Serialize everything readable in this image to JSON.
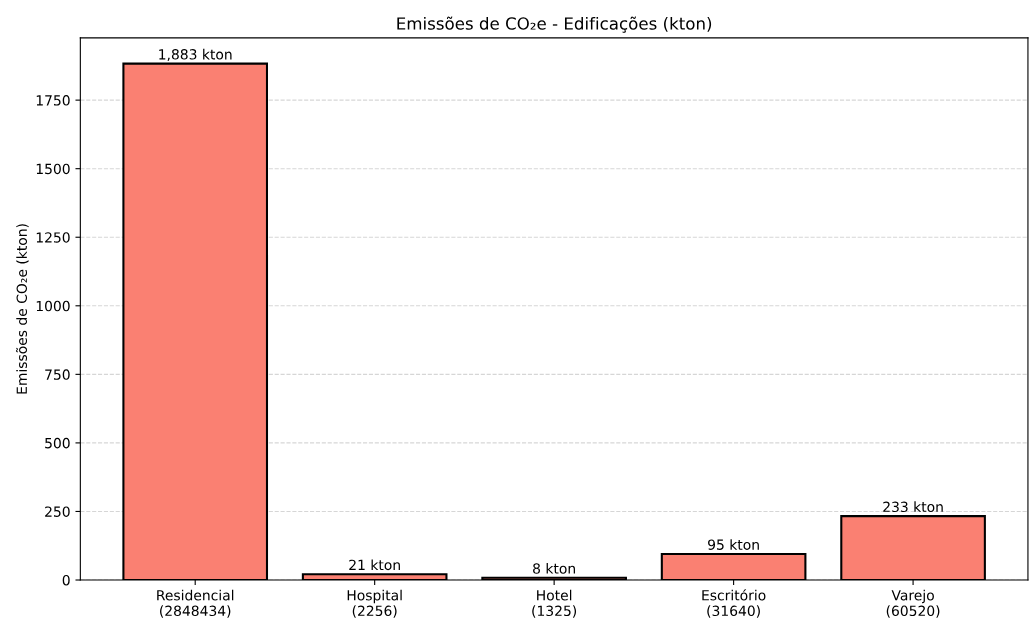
{
  "chart_data": {
    "type": "bar",
    "title": "Emissões de CO₂e - Edificações (kton)",
    "ylabel": "Emissões de CO₂e (kton)",
    "categories": [
      "Residencial\n(2848434)",
      "Hospital\n(2256)",
      "Hotel\n(1325)",
      "Escritório\n(31640)",
      "Varejo\n(60520)"
    ],
    "values": [
      1883,
      21,
      8,
      95,
      233
    ],
    "value_labels": [
      "1,883 kton",
      "21 kton",
      "8 kton",
      "95 kton",
      "233 kton"
    ],
    "color": "#fa8072",
    "ylim": [
      0,
      1977
    ],
    "yticks": [
      0,
      250,
      500,
      750,
      1000,
      1250,
      1500,
      1750
    ],
    "grid": "y",
    "legend": false
  }
}
